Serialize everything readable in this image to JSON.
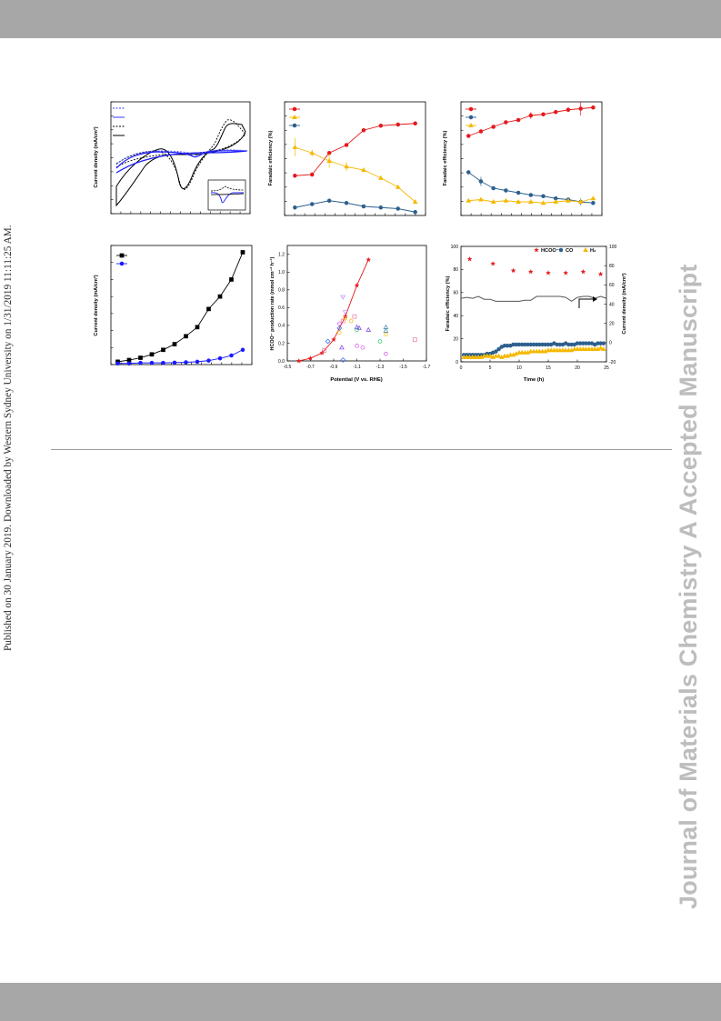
{
  "page": {
    "side_note": "Published on 30 January 2019. Downloaded by Western Sydney University on 1/31/2019 11:11:25 AM.",
    "watermark": "Journal of Materials Chemistry A Accepted Manuscript"
  },
  "colors": {
    "band": "#a7a7a7",
    "red": "#e41a1c",
    "blue_dark": "#2d5f8e",
    "yellow": "#f5b800",
    "blue": "#1a1aff",
    "black": "#000000"
  },
  "figure": {
    "panel_a": {
      "ylabel": "Current density (mA/cm²)"
    },
    "panel_b": {
      "ylabel": "Faradaic efficiency (%)"
    },
    "panel_c": {
      "ylabel": "Faradaic efficiency (%)"
    },
    "panel_d": {
      "ylabel": "Current density (mA/cm²)"
    },
    "panel_e": {
      "ylabel": "HCOO⁻ production rate (mmol cm⁻² h⁻¹)",
      "xlabel": "Potential (V vs. RHE)",
      "yticks": [
        "0.0",
        "0.2",
        "0.4",
        "0.6",
        "0.8",
        "1.0",
        "1.2"
      ],
      "xticks": [
        "-0.5",
        "-0.7",
        "-0.9",
        "-1.1",
        "-1.3",
        "-1.5",
        "-1.7"
      ]
    },
    "panel_f": {
      "ylabel_left": "Faradaic efficiency (%)",
      "ylabel_right": "Current density (mA/cm²)",
      "xlabel": "Time (h)",
      "yticks_left": [
        "0",
        "20",
        "40",
        "60",
        "80",
        "100"
      ],
      "yticks_right": [
        "-20",
        "0",
        "20",
        "40",
        "60",
        "80",
        "100"
      ],
      "xticks": [
        "0",
        "5",
        "10",
        "15",
        "20",
        "25"
      ],
      "legend": [
        "HCOO⁻",
        "CO",
        "H₂"
      ]
    }
  },
  "chart_data": [
    {
      "type": "line",
      "panel": "a",
      "ylabel": "Current density (mA/cm²)",
      "series": [
        {
          "name": "",
          "style": "blue-dashed"
        },
        {
          "name": "",
          "style": "blue-solid"
        },
        {
          "name": "",
          "style": "black-dashed"
        },
        {
          "name": "",
          "style": "black-solid"
        }
      ]
    },
    {
      "type": "line",
      "panel": "b",
      "ylabel": "Faradaic efficiency (%)",
      "ylim": [
        0,
        100
      ],
      "x": [
        1,
        2,
        3,
        4,
        5,
        6,
        7,
        8
      ],
      "series": [
        {
          "name": "",
          "color": "red",
          "values": [
            35,
            36,
            55,
            62,
            75,
            79,
            80,
            81
          ]
        },
        {
          "name": "",
          "color": "yellow",
          "values": [
            60,
            55,
            48,
            43,
            40,
            33,
            25,
            12
          ],
          "err": [
            8,
            3,
            6,
            4,
            2,
            2,
            1,
            1
          ]
        },
        {
          "name": "",
          "color": "blue_dark",
          "values": [
            7,
            10,
            13,
            11,
            8,
            7,
            6,
            3
          ]
        }
      ]
    },
    {
      "type": "line",
      "panel": "c",
      "ylabel": "Faradaic efficiency (%)",
      "ylim": [
        0,
        100
      ],
      "x": [
        1,
        2,
        3,
        4,
        5,
        6,
        7,
        8,
        9,
        10,
        11
      ],
      "series": [
        {
          "name": "",
          "color": "red",
          "values": [
            70,
            74,
            78,
            82,
            84,
            88,
            89,
            91,
            93,
            94,
            95
          ],
          "err": [
            1,
            1,
            1,
            1,
            1,
            3,
            1,
            1,
            2,
            6,
            1
          ]
        },
        {
          "name": "",
          "color": "blue_dark",
          "values": [
            38,
            30,
            24,
            22,
            20,
            18,
            17,
            15,
            14,
            12,
            11
          ],
          "err": [
            1,
            4,
            1,
            1,
            1,
            1,
            1,
            1,
            1,
            3,
            1
          ]
        },
        {
          "name": "",
          "color": "yellow",
          "values": [
            13,
            14,
            12,
            13,
            12,
            12,
            11,
            12,
            13,
            12,
            15
          ],
          "err": [
            1,
            1,
            1,
            1,
            1,
            1,
            1,
            1,
            1,
            1,
            1
          ]
        }
      ]
    },
    {
      "type": "line",
      "panel": "d",
      "ylabel": "Current density (mA/cm²)",
      "x": [
        1,
        2,
        3,
        4,
        5,
        6,
        7,
        8,
        9,
        10,
        11,
        12
      ],
      "series": [
        {
          "name": "",
          "color": "black",
          "values": [
            0.5,
            0.8,
            1.2,
            1.8,
            2.6,
            3.6,
            5.0,
            6.6,
            9.8,
            12.0,
            15.0,
            19.8
          ]
        },
        {
          "name": "",
          "color": "blue",
          "values": [
            0.2,
            0.2,
            0.3,
            0.3,
            0.3,
            0.35,
            0.4,
            0.5,
            0.7,
            1.1,
            1.6,
            2.6
          ]
        }
      ]
    },
    {
      "type": "scatter",
      "panel": "e",
      "xlabel": "Potential (V vs. RHE)",
      "ylabel": "HCOO⁻ production rate (mmol cm⁻² h⁻¹)",
      "xlim": [
        -0.5,
        -1.7
      ],
      "ylim": [
        0,
        1.3
      ],
      "series": [
        {
          "name": "",
          "color": "#e41a1c",
          "marker": "star",
          "line": true,
          "x": [
            -0.6,
            -0.7,
            -0.8,
            -0.9,
            -1.0,
            -1.1,
            -1.2
          ],
          "y": [
            0.0,
            0.03,
            0.09,
            0.24,
            0.5,
            0.85,
            1.14
          ]
        },
        {
          "name": "",
          "color": "#d946ef",
          "marker": "circle",
          "x": [
            -0.95,
            -1.1,
            -1.15,
            -1.35
          ],
          "y": [
            0.42,
            0.17,
            0.15,
            0.08
          ]
        },
        {
          "name": "",
          "color": "#2563eb",
          "marker": "diamond",
          "x": [
            -0.85,
            -0.95,
            -0.98
          ],
          "y": [
            0.22,
            0.37,
            0.01
          ]
        },
        {
          "name": "",
          "color": "#e879a0",
          "marker": "square",
          "x": [
            -0.82,
            -0.98,
            -1.08,
            -1.6
          ],
          "y": [
            0.12,
            0.45,
            0.5,
            0.24
          ]
        },
        {
          "name": "",
          "color": "#7c3aed",
          "marker": "triangle",
          "x": [
            -0.97,
            -1.1,
            -1.12,
            -1.2
          ],
          "y": [
            0.15,
            0.38,
            0.37,
            0.35
          ]
        },
        {
          "name": "",
          "color": "#22c55e",
          "marker": "circle",
          "x": [
            -1.1,
            -1.3
          ],
          "y": [
            0.35,
            0.22
          ]
        },
        {
          "name": "",
          "color": "#f5b800",
          "marker": "circle",
          "x": [
            -0.95,
            -1.0,
            -1.05,
            -1.35
          ],
          "y": [
            0.32,
            0.48,
            0.45,
            0.3
          ]
        },
        {
          "name": "",
          "color": "#c084fc",
          "marker": "tri-down",
          "x": [
            -0.98,
            -1.0
          ],
          "y": [
            0.72,
            0.55
          ]
        },
        {
          "name": "",
          "color": "#3b82a0",
          "marker": "triangle",
          "x": [
            -1.35,
            -1.35
          ],
          "y": [
            0.38,
            0.34
          ]
        }
      ]
    },
    {
      "type": "scatter",
      "panel": "f",
      "xlabel": "Time (h)",
      "ylabel": "Faradaic efficiency (%)",
      "xlim": [
        0,
        25
      ],
      "ylim": [
        0,
        100
      ],
      "series": [
        {
          "name": "HCOO⁻",
          "color": "#e41a1c",
          "marker": "star",
          "x": [
            1.5,
            5.5,
            9,
            12,
            15,
            18,
            21,
            24
          ],
          "y": [
            89,
            85,
            79,
            78,
            77,
            77,
            78,
            76
          ]
        },
        {
          "name": "CO",
          "color": "#2d5f8e",
          "marker": "circle",
          "x": [
            0.5,
            1,
            1.5,
            2,
            2.5,
            3,
            3.5,
            4,
            4.5,
            5,
            5.5,
            6,
            6.5,
            7,
            7.5,
            8,
            8.5,
            9,
            9.5,
            10,
            10.5,
            11,
            11.5,
            12,
            12.5,
            13,
            13.5,
            14,
            14.5,
            15,
            15.5,
            16,
            16.5,
            17,
            17.5,
            18,
            18.5,
            19,
            19.5,
            20,
            20.5,
            21,
            21.5,
            22,
            22.5,
            23,
            23.5,
            24,
            24.5
          ],
          "y": [
            6,
            6,
            6,
            6,
            6,
            6,
            6,
            6,
            7,
            7,
            8,
            9,
            11,
            13,
            14,
            14,
            14,
            15,
            15,
            15,
            15,
            15,
            15,
            15,
            15,
            15,
            15,
            15,
            15,
            15,
            15,
            16,
            15,
            15,
            15,
            16,
            15,
            15,
            15,
            16,
            16,
            16,
            16,
            16,
            16,
            15,
            16,
            16,
            16
          ]
        },
        {
          "name": "H₂",
          "color": "#f5b800",
          "marker": "triangle",
          "x": [
            0.5,
            1,
            1.5,
            2,
            2.5,
            3,
            3.5,
            4,
            4.5,
            5,
            5.5,
            6,
            6.5,
            7,
            7.5,
            8,
            8.5,
            9,
            9.5,
            10,
            10.5,
            11,
            11.5,
            12,
            12.5,
            13,
            13.5,
            14,
            14.5,
            15,
            15.5,
            16,
            16.5,
            17,
            17.5,
            18,
            18.5,
            19,
            19.5,
            20,
            20.5,
            21,
            21.5,
            22,
            22.5,
            23,
            23.5,
            24,
            24.5
          ],
          "y": [
            4,
            4,
            4,
            4,
            4,
            4,
            4,
            5,
            5,
            5,
            4,
            5,
            5,
            4,
            5,
            5,
            6,
            6,
            7,
            8,
            8,
            8,
            8,
            9,
            9,
            9,
            9,
            9,
            9,
            10,
            10,
            10,
            10,
            10,
            10,
            10,
            10,
            10,
            11,
            11,
            11,
            11,
            11,
            11,
            11,
            11,
            11,
            12,
            11
          ]
        },
        {
          "name": "",
          "color": "#555555",
          "marker": "none",
          "axis": "right",
          "x": [
            0,
            1,
            2,
            3,
            4,
            5,
            6,
            7,
            8,
            9,
            10,
            11,
            12,
            13,
            14,
            15,
            16,
            17,
            18,
            19,
            20,
            21,
            22,
            23,
            24,
            25
          ],
          "y": [
            46,
            47,
            46,
            48,
            45,
            45,
            43,
            43,
            43,
            43,
            43,
            44,
            44,
            48,
            48,
            48,
            48,
            48,
            47,
            43,
            47,
            48,
            48,
            46,
            48,
            46
          ]
        }
      ]
    }
  ]
}
